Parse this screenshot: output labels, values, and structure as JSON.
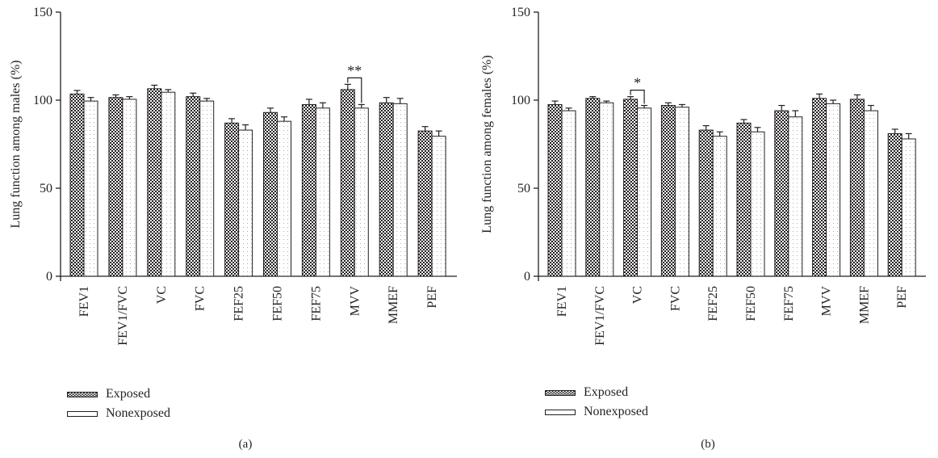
{
  "chart_data": [
    {
      "type": "bar",
      "ylabel": "Lung function among males (%)",
      "xlabel": "",
      "ylim": [
        0,
        150
      ],
      "yticks": [
        "0",
        "50",
        "100",
        "150"
      ],
      "categories": [
        "FEV1",
        "FEV1/FVC",
        "VC",
        "FVC",
        "FEF25",
        "FEF50",
        "FEF75",
        "MVV",
        "MMEF",
        "PEF"
      ],
      "series": [
        {
          "name": "Exposed",
          "values": [
            103.5,
            101.5,
            106.5,
            102,
            87,
            93,
            97.5,
            106,
            98.5,
            82.5
          ],
          "errors": [
            2,
            1.5,
            2,
            2,
            2.5,
            2.5,
            3,
            3,
            3,
            2.5
          ]
        },
        {
          "name": "Nonexposed",
          "values": [
            99.5,
            100.5,
            104.5,
            99.5,
            83,
            88,
            95.5,
            95.5,
            98,
            79.5
          ],
          "errors": [
            2,
            1.5,
            1.5,
            1.5,
            3,
            2.5,
            3,
            2,
            3,
            3
          ]
        }
      ],
      "annotations": [
        {
          "category": "MVV",
          "text": "**"
        }
      ],
      "panel_label": "(a)"
    },
    {
      "type": "bar",
      "ylabel": "Lung function among females (%)",
      "xlabel": "",
      "ylim": [
        0,
        150
      ],
      "yticks": [
        "0",
        "50",
        "100",
        "150"
      ],
      "categories": [
        "FEV1",
        "FEV1/FVC",
        "VC",
        "FVC",
        "FEF25",
        "FEF50",
        "FEF75",
        "MVV",
        "MMEF",
        "PEF"
      ],
      "series": [
        {
          "name": "Exposed",
          "values": [
            97.5,
            101,
            100.5,
            97,
            83,
            87,
            94,
            101,
            100.5,
            81
          ],
          "errors": [
            2,
            1,
            1.5,
            1.5,
            2.5,
            2,
            3,
            2.5,
            2.5,
            2.5
          ]
        },
        {
          "name": "Nonexposed",
          "values": [
            94,
            98.5,
            95.5,
            96,
            79.5,
            82,
            90.5,
            98,
            94,
            78
          ],
          "errors": [
            1.5,
            1,
            1.5,
            1.5,
            2.5,
            2.5,
            3.5,
            2,
            3,
            3
          ]
        }
      ],
      "annotations": [
        {
          "category": "VC",
          "text": "*"
        }
      ],
      "panel_label": "(b)"
    }
  ],
  "legend": {
    "exposed": "Exposed",
    "nonexposed": "Nonexposed"
  },
  "colors": {
    "ink": "#231f20",
    "exposed_fill": "checkerboard-dark",
    "nonexposed_fill": "light-dotted"
  }
}
